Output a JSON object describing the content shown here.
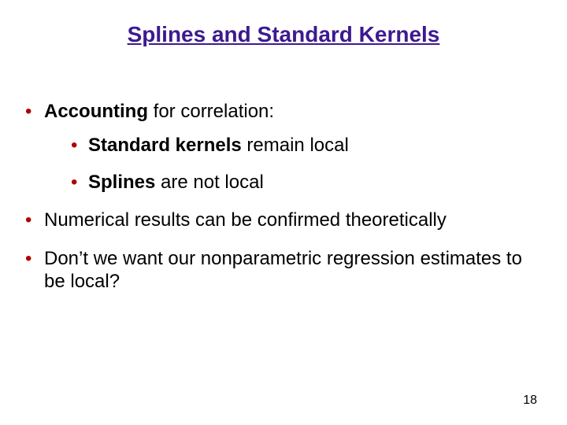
{
  "title": {
    "text": "Splines and Standard Kernels",
    "color": "#3d1a8f",
    "fontsize": 28
  },
  "body": {
    "color": "#000000",
    "fontsize": 24,
    "bullet_color": "#b00000",
    "line_height": 1.2
  },
  "bullets": [
    {
      "runs": [
        {
          "t": "Accounting",
          "bold": true
        },
        {
          "t": " for correlation:",
          "bold": false
        }
      ],
      "children": [
        {
          "runs": [
            {
              "t": "Standard kernels",
              "bold": true
            },
            {
              "t": " remain local",
              "bold": false
            }
          ]
        },
        {
          "runs": [
            {
              "t": "Splines",
              "bold": true
            },
            {
              "t": " are not local",
              "bold": false
            }
          ]
        }
      ]
    },
    {
      "runs": [
        {
          "t": "Numerical results can be confirmed theoretically",
          "bold": false
        }
      ]
    },
    {
      "runs": [
        {
          "t": "Don’t we want our nonparametric regression estimates to be local?",
          "bold": false
        }
      ]
    }
  ],
  "page_number": {
    "text": "18",
    "color": "#000000",
    "fontsize": 16
  }
}
